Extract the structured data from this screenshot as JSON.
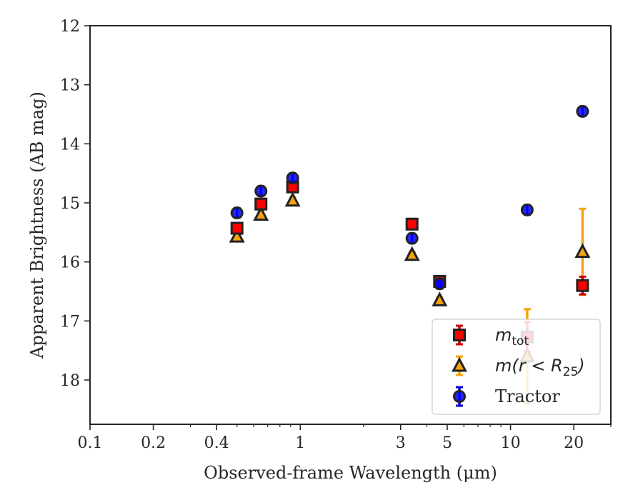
{
  "chart_data": {
    "type": "scatter",
    "title": "",
    "xlabel": "Observed-frame Wavelength (μm)",
    "ylabel": "Apparent Brightness (AB mag)",
    "xscale": "log",
    "xlim": [
      0.1,
      30
    ],
    "ylim": [
      18.75,
      12
    ],
    "y_inverted": true,
    "grid": false,
    "legend_position": "lower-right",
    "x_ticks": [
      {
        "value": 0.1,
        "label": "0.1"
      },
      {
        "value": 0.2,
        "label": "0.2"
      },
      {
        "value": 0.4,
        "label": "0.4"
      },
      {
        "value": 1,
        "label": "1"
      },
      {
        "value": 3,
        "label": "3"
      },
      {
        "value": 5,
        "label": "5"
      },
      {
        "value": 10,
        "label": "10"
      },
      {
        "value": 20,
        "label": "20"
      }
    ],
    "y_ticks": [
      {
        "value": 12,
        "label": "12"
      },
      {
        "value": 13,
        "label": "13"
      },
      {
        "value": 14,
        "label": "14"
      },
      {
        "value": 15,
        "label": "15"
      },
      {
        "value": 16,
        "label": "16"
      },
      {
        "value": 17,
        "label": "17"
      },
      {
        "value": 18,
        "label": "18"
      }
    ],
    "series": [
      {
        "name": "m_tot",
        "legend_label": {
          "base": "m",
          "sub": "tot",
          "rest": ""
        },
        "marker": "square",
        "color": "#ff0000",
        "errcolor": "#cc0000",
        "points": [
          {
            "x": 0.5,
            "y": 15.43,
            "err": 0.05
          },
          {
            "x": 0.65,
            "y": 15.02,
            "err": 0.05
          },
          {
            "x": 0.92,
            "y": 14.73,
            "err": 0.05
          },
          {
            "x": 3.4,
            "y": 15.36,
            "err": 0.05
          },
          {
            "x": 4.6,
            "y": 16.33,
            "err": 0.08
          },
          {
            "x": 12.0,
            "y": 17.27,
            "err": 0.25
          },
          {
            "x": 22.0,
            "y": 16.4,
            "err": 0.15
          }
        ]
      },
      {
        "name": "m(r < R25)",
        "legend_label": {
          "base": "m(r < R",
          "sub": "25",
          "rest": ")"
        },
        "marker": "triangle",
        "color": "#f5a30f",
        "errcolor": "#f5a30f",
        "points": [
          {
            "x": 0.5,
            "y": 15.57,
            "err": 0.05
          },
          {
            "x": 0.65,
            "y": 15.2,
            "err": 0.05
          },
          {
            "x": 0.92,
            "y": 14.96,
            "err": 0.05
          },
          {
            "x": 3.4,
            "y": 15.88,
            "err": 0.05
          },
          {
            "x": 4.6,
            "y": 16.65,
            "err": 0.05
          },
          {
            "x": 12.0,
            "y": 17.6,
            "err": 0.8
          },
          {
            "x": 22.0,
            "y": 15.83,
            "err": 0.73
          }
        ]
      },
      {
        "name": "Tractor",
        "legend_label": {
          "base": "Tractor",
          "sub": "",
          "rest": ""
        },
        "marker": "circle",
        "color": "#0000ff",
        "errcolor": "#0000dd",
        "points": [
          {
            "x": 0.5,
            "y": 15.17,
            "err": 0.08
          },
          {
            "x": 0.65,
            "y": 14.8,
            "err": 0.08
          },
          {
            "x": 0.92,
            "y": 14.58,
            "err": 0.08
          },
          {
            "x": 3.4,
            "y": 15.6,
            "err": 0.08
          },
          {
            "x": 4.6,
            "y": 16.37,
            "err": 0.08
          },
          {
            "x": 12.0,
            "y": 15.12,
            "err": 0.08
          },
          {
            "x": 22.0,
            "y": 13.45,
            "err": 0.08
          }
        ]
      }
    ]
  }
}
